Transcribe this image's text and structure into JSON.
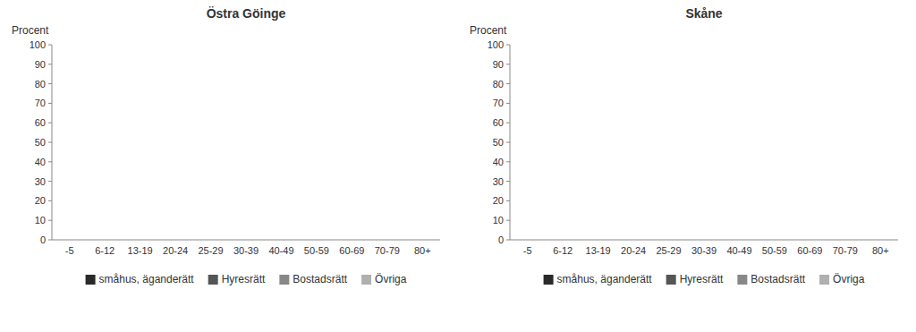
{
  "chart_data": [
    {
      "type": "bar",
      "title": "Östra Göinge",
      "y_label": "Procent",
      "stacked": true,
      "grid": false,
      "legend": "bottom",
      "categories": [
        "-5",
        "6-12",
        "13-19",
        "20-24",
        "25-29",
        "30-39",
        "40-49",
        "50-59",
        "60-69",
        "70-79",
        "80+"
      ],
      "ylim": [
        0,
        100
      ],
      "yticks": [
        0,
        10,
        20,
        30,
        40,
        50,
        60,
        70,
        80,
        90,
        100
      ],
      "series": [
        {
          "name": "småhus, äganderätt",
          "color": "#2a2a2a",
          "values": [
            0,
            0,
            0,
            0,
            0,
            0,
            0,
            0,
            0,
            0,
            0
          ]
        },
        {
          "name": "Hyresrätt",
          "color": "#555555",
          "values": [
            0,
            0,
            0,
            0,
            0,
            0,
            0,
            0,
            0,
            0,
            0
          ]
        },
        {
          "name": "Bostadsrätt",
          "color": "#888888",
          "values": [
            0,
            0,
            0,
            0,
            0,
            0,
            0,
            0,
            0,
            0,
            0
          ]
        },
        {
          "name": "Övriga",
          "color": "#b0b0b0",
          "values": [
            0,
            0,
            0,
            0,
            0,
            0,
            0,
            0,
            0,
            0,
            0
          ]
        }
      ]
    },
    {
      "type": "bar",
      "title": "Skåne",
      "y_label": "Procent",
      "stacked": true,
      "grid": false,
      "legend": "bottom",
      "categories": [
        "-5",
        "6-12",
        "13-19",
        "20-24",
        "25-29",
        "30-39",
        "40-49",
        "50-59",
        "60-69",
        "70-79",
        "80+"
      ],
      "ylim": [
        0,
        100
      ],
      "yticks": [
        0,
        10,
        20,
        30,
        40,
        50,
        60,
        70,
        80,
        90,
        100
      ],
      "series": [
        {
          "name": "småhus, äganderätt",
          "color": "#2a2a2a",
          "values": [
            0,
            0,
            0,
            0,
            0,
            0,
            0,
            0,
            0,
            0,
            0
          ]
        },
        {
          "name": "Hyresrätt",
          "color": "#555555",
          "values": [
            0,
            0,
            0,
            0,
            0,
            0,
            0,
            0,
            0,
            0,
            0
          ]
        },
        {
          "name": "Bostadsrätt",
          "color": "#888888",
          "values": [
            0,
            0,
            0,
            0,
            0,
            0,
            0,
            0,
            0,
            0,
            0
          ]
        },
        {
          "name": "Övriga",
          "color": "#b0b0b0",
          "values": [
            0,
            0,
            0,
            0,
            0,
            0,
            0,
            0,
            0,
            0,
            0
          ]
        }
      ]
    }
  ]
}
